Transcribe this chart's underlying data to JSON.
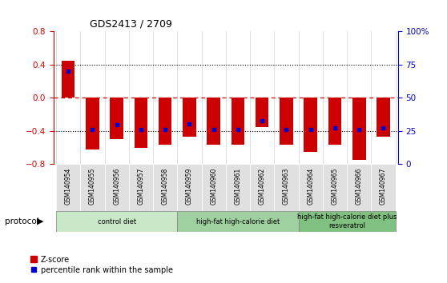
{
  "title": "GDS2413 / 2709",
  "samples": [
    "GSM140954",
    "GSM140955",
    "GSM140956",
    "GSM140957",
    "GSM140958",
    "GSM140959",
    "GSM140960",
    "GSM140961",
    "GSM140962",
    "GSM140963",
    "GSM140964",
    "GSM140965",
    "GSM140966",
    "GSM140967"
  ],
  "z_scores": [
    0.44,
    -0.62,
    -0.5,
    -0.6,
    -0.57,
    -0.47,
    -0.57,
    -0.57,
    -0.35,
    -0.57,
    -0.65,
    -0.57,
    -0.75,
    -0.47
  ],
  "percentile_ranks": [
    0.32,
    -0.38,
    -0.33,
    -0.38,
    -0.38,
    -0.32,
    -0.38,
    -0.38,
    -0.28,
    -0.38,
    -0.38,
    -0.36,
    -0.38,
    -0.36
  ],
  "ylim": [
    -0.8,
    0.8
  ],
  "yticks_left": [
    -0.8,
    -0.4,
    0.0,
    0.4,
    0.8
  ],
  "right_ticks_pos": [
    -0.8,
    -0.4,
    0.0,
    0.4,
    0.8
  ],
  "right_tick_labels": [
    "0",
    "25",
    "50",
    "75",
    "100%"
  ],
  "protocol_groups": [
    {
      "label": "control diet",
      "start": 0,
      "end": 4,
      "color": "#c8e8c8"
    },
    {
      "label": "high-fat high-calorie diet",
      "start": 5,
      "end": 9,
      "color": "#a0d0a0"
    },
    {
      "label": "high-fat high-calorie diet plus\nresveratrol",
      "start": 10,
      "end": 13,
      "color": "#80c080"
    }
  ],
  "bar_color": "#cc0000",
  "dot_color": "#0000cc",
  "zero_line_color": "#cc0000",
  "dotted_line_color": "#000000",
  "title_color": "#000000",
  "left_axis_color": "#cc0000",
  "right_axis_color": "#0000cc",
  "bar_width": 0.55
}
